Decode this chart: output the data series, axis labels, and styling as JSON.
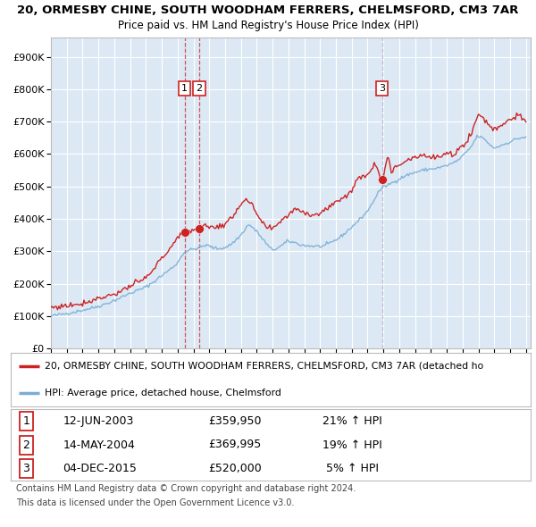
{
  "title_line1": "20, ORMESBY CHINE, SOUTH WOODHAM FERRERS, CHELMSFORD, CM3 7AR",
  "title_line2": "Price paid vs. HM Land Registry's House Price Index (HPI)",
  "ytick_vals": [
    0,
    100000,
    200000,
    300000,
    400000,
    500000,
    600000,
    700000,
    800000,
    900000
  ],
  "ylim": [
    0,
    960000
  ],
  "xlim_start": 1995.0,
  "xlim_end": 2025.3,
  "transactions": [
    {
      "label": "1",
      "date_str": "12-JUN-2003",
      "price": 359950,
      "pct": "21% ↑ HPI",
      "x_year": 2003.44
    },
    {
      "label": "2",
      "date_str": "14-MAY-2004",
      "price": 369995,
      "pct": "19% ↑ HPI",
      "x_year": 2004.37
    },
    {
      "label": "3",
      "date_str": "04-DEC-2015",
      "price": 520000,
      "pct": " 5% ↑ HPI",
      "x_year": 2015.92
    }
  ],
  "hpi_color": "#7aadd4",
  "price_color": "#cc2222",
  "marker_color": "#cc2222",
  "vline_color_12": "#cc2222",
  "vline_color_3": "#aaaacc",
  "plot_bg_color": "#dce9f5",
  "grid_color": "#ffffff",
  "legend_label_price": "20, ORMESBY CHINE, SOUTH WOODHAM FERRERS, CHELMSFORD, CM3 7AR (detached ho",
  "legend_label_hpi": "HPI: Average price, detached house, Chelmsford",
  "footer_line1": "Contains HM Land Registry data © Crown copyright and database right 2024.",
  "footer_line2": "This data is licensed under the Open Government Licence v3.0.",
  "table_rows": [
    [
      "1",
      "12-JUN-2003",
      "£359,950",
      "21% ↑ HPI"
    ],
    [
      "2",
      "14-MAY-2004",
      "£369,995",
      "19% ↑ HPI"
    ],
    [
      "3",
      "04-DEC-2015",
      "£520,000",
      " 5% ↑ HPI"
    ]
  ]
}
